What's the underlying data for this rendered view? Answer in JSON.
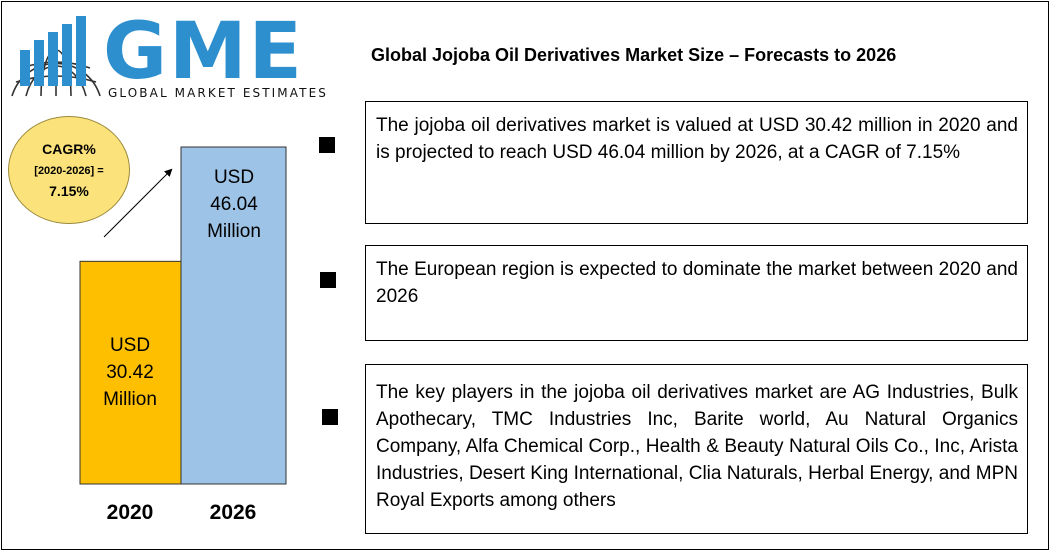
{
  "logo": {
    "letters": "GME",
    "subtitle": "GLOBAL MARKET ESTIMATES"
  },
  "page_title": "Global Jojoba Oil Derivatives Market Size – Forecasts to 2026",
  "cagr": {
    "line1": "CAGR%",
    "line2": "[2020-2026] =",
    "line3": "7.15%"
  },
  "colors": {
    "bar_2020": "#fdbf00",
    "bar_2026": "#9dc3e6",
    "logo_blue": "#2d8fce",
    "bubble": "#fce27a"
  },
  "chart_data": {
    "type": "bar",
    "categories": [
      "2020",
      "2026"
    ],
    "values": [
      30.42,
      46.04
    ],
    "bar_labels": [
      [
        "USD",
        "30.42",
        "Million"
      ],
      [
        "USD",
        "46.04",
        "Million"
      ]
    ],
    "unit": "USD Million",
    "ylim": [
      0,
      46.04
    ],
    "grid": false
  },
  "info_boxes": [
    {
      "text": "The jojoba oil derivatives market is valued at USD 30.42 million in 2020 and is projected to reach USD 46.04 million by 2026, at a CAGR of 7.15%"
    },
    {
      "text": "The European region is expected to dominate the market between 2020 and 2026"
    },
    {
      "text": "The key players in the jojoba oil derivatives market are AG Industries, Bulk Apothecary, TMC Industries Inc, Barite world, Au Natural Organics Company, Alfa Chemical Corp., Health & Beauty Natural Oils Co., Inc, Arista Industries, Desert King International, Clia Naturals, Herbal Energy, and MPN Royal Exports among others"
    }
  ]
}
